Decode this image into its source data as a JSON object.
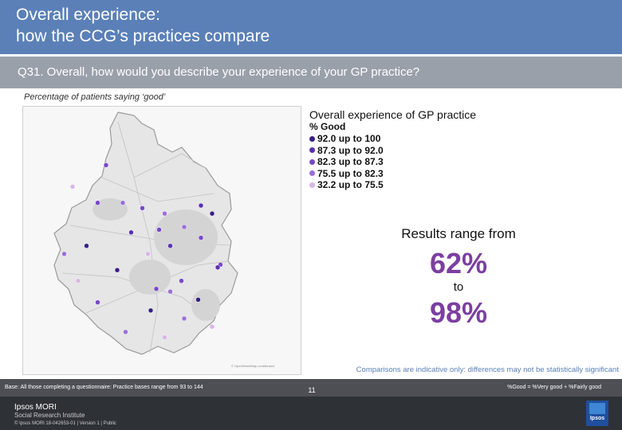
{
  "header": {
    "title_line1": "Overall experience:",
    "title_line2": "how the CCG’s practices compare"
  },
  "question": "Q31. Overall, how would you describe your experience of your GP practice?",
  "subtitle": "Percentage of patients saying ‘good’",
  "legend": {
    "title": "Overall experience of GP practice",
    "subtitle": "% Good",
    "items": [
      {
        "label": "92.0 up to 100",
        "color": "#3a1f86"
      },
      {
        "label": "87.3 up to 92.0",
        "color": "#5a31b0"
      },
      {
        "label": "82.3 up to 87.3",
        "color": "#7a48c8"
      },
      {
        "label": "75.5 up to 82.3",
        "color": "#9b6fd8"
      },
      {
        "label": "32.2 up to 75.5",
        "color": "#d9b6e6"
      }
    ]
  },
  "summary": {
    "label": "Results range from",
    "low": "62%",
    "connector": "to",
    "high": "98%"
  },
  "caveat": "Comparisons are indicative only: differences may not be statistically significant",
  "base_note": "Base: All those completing a questionnaire: Practice bases range from 93 to 144",
  "definition_note": "%Good = %Very good + %Fairly good",
  "footer": {
    "brand": "Ipsos MORI",
    "institute": "Social Research Institute",
    "copyright": "© Ipsos MORI    18-042653-01 | Version 1 | Public",
    "page": "11",
    "logo_text": "Ipsos"
  },
  "practices": [
    {
      "band": 2,
      "lat": 0.22,
      "lon": 0.3
    },
    {
      "band": 4,
      "lat": 0.3,
      "lon": 0.18
    },
    {
      "band": 2,
      "lat": 0.36,
      "lon": 0.27
    },
    {
      "band": 3,
      "lat": 0.36,
      "lon": 0.36
    },
    {
      "band": 2,
      "lat": 0.38,
      "lon": 0.43
    },
    {
      "band": 3,
      "lat": 0.4,
      "lon": 0.51
    },
    {
      "band": 1,
      "lat": 0.37,
      "lon": 0.64
    },
    {
      "band": 1,
      "lat": 0.47,
      "lon": 0.39
    },
    {
      "band": 3,
      "lat": 0.45,
      "lon": 0.58
    },
    {
      "band": 2,
      "lat": 0.49,
      "lon": 0.64
    },
    {
      "band": 2,
      "lat": 0.46,
      "lon": 0.49
    },
    {
      "band": 4,
      "lat": 0.55,
      "lon": 0.45
    },
    {
      "band": 1,
      "lat": 0.52,
      "lon": 0.53
    },
    {
      "band": 2,
      "lat": 0.59,
      "lon": 0.71
    },
    {
      "band": 0,
      "lat": 0.52,
      "lon": 0.23
    },
    {
      "band": 3,
      "lat": 0.55,
      "lon": 0.15
    },
    {
      "band": 4,
      "lat": 0.65,
      "lon": 0.2
    },
    {
      "band": 0,
      "lat": 0.61,
      "lon": 0.34
    },
    {
      "band": 2,
      "lat": 0.68,
      "lon": 0.48
    },
    {
      "band": 0,
      "lat": 0.72,
      "lon": 0.63
    },
    {
      "band": 0,
      "lat": 0.76,
      "lon": 0.46
    },
    {
      "band": 2,
      "lat": 0.65,
      "lon": 0.57
    },
    {
      "band": 3,
      "lat": 0.79,
      "lon": 0.58
    },
    {
      "band": 4,
      "lat": 0.82,
      "lon": 0.68
    },
    {
      "band": 2,
      "lat": 0.73,
      "lon": 0.27
    },
    {
      "band": 4,
      "lat": 0.86,
      "lon": 0.51
    },
    {
      "band": 3,
      "lat": 0.84,
      "lon": 0.37
    },
    {
      "band": 0,
      "lat": 0.4,
      "lon": 0.68
    },
    {
      "band": 1,
      "lat": 0.6,
      "lon": 0.7
    },
    {
      "band": 3,
      "lat": 0.69,
      "lon": 0.53
    }
  ]
}
